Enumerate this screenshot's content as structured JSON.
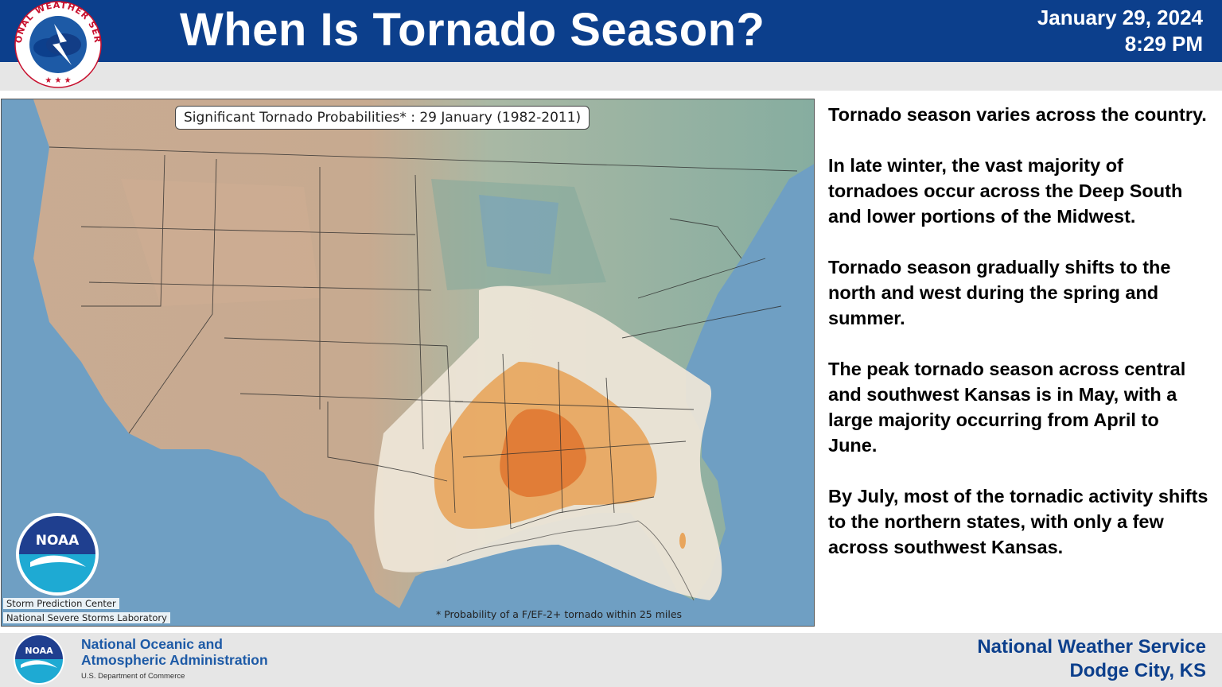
{
  "header": {
    "title": "When Is Tornado Season?",
    "date": "January 29, 2024",
    "time": "8:29 PM",
    "logo_text": "NATIONAL WEATHER SERVICE",
    "logo_icon": "nws-logo-icon"
  },
  "map": {
    "title": "Significant Tornado Probabilities* : 29 January (1982-2011)",
    "credit_line1": "Storm Prediction Center",
    "credit_line2": "National Severe Storms Laboratory",
    "footnote": "* Probability of a F/EF-2+ tornado within 25 miles",
    "logo_text": "NOAA",
    "colors": {
      "ocean": "#6d9ec4",
      "land_low": "#8ab0a4",
      "land_high": "#c8aa90",
      "prob_low": "#efe6d8",
      "prob_mid": "#e8a55c",
      "prob_high": "#e07a35"
    }
  },
  "text_panel": {
    "p1": "Tornado season varies across the country.",
    "p2": "In late winter, the vast majority of tornadoes occur across the Deep South and lower portions of the Midwest.",
    "p3": "Tornado season gradually shifts to the north and west during the spring and summer.",
    "p4": "The peak tornado season across central and southwest Kansas is in May, with a large majority occurring from April to June.",
    "p5": "By July, most of the tornadic activity shifts to the northern states, with only a few across southwest Kansas."
  },
  "footer": {
    "noaa_line1": "National Oceanic and",
    "noaa_line2": "Atmospheric Administration",
    "noaa_dept": "U.S. Department of Commerce",
    "nws_line1": "National Weather Service",
    "nws_line2": "Dodge City, KS",
    "logo_text": "NOAA"
  }
}
